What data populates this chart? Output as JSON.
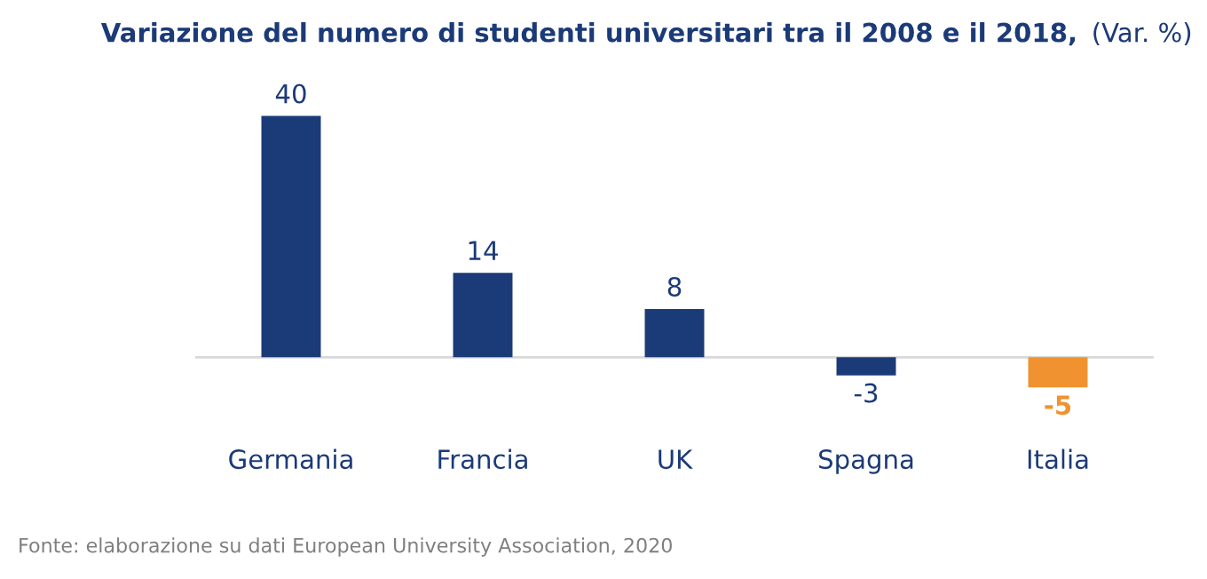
{
  "chart_data": {
    "type": "bar",
    "title": "Variazione del numero di studenti universitari tra il 2008 e il 2018,",
    "subtitle": "(Var. %)",
    "categories": [
      "Germania",
      "Francia",
      "UK",
      "Spagna",
      "Italia"
    ],
    "values": [
      40,
      14,
      8,
      -3,
      -5
    ],
    "colors": [
      "#1b3a78",
      "#1b3a78",
      "#1b3a78",
      "#1b3a78",
      "#f0922f"
    ],
    "data_labels": true,
    "grid": false,
    "legend": false,
    "tick_labels": "x",
    "annotations": [
      "Fonte: elaborazione su dati European University Association, 2020"
    ]
  }
}
